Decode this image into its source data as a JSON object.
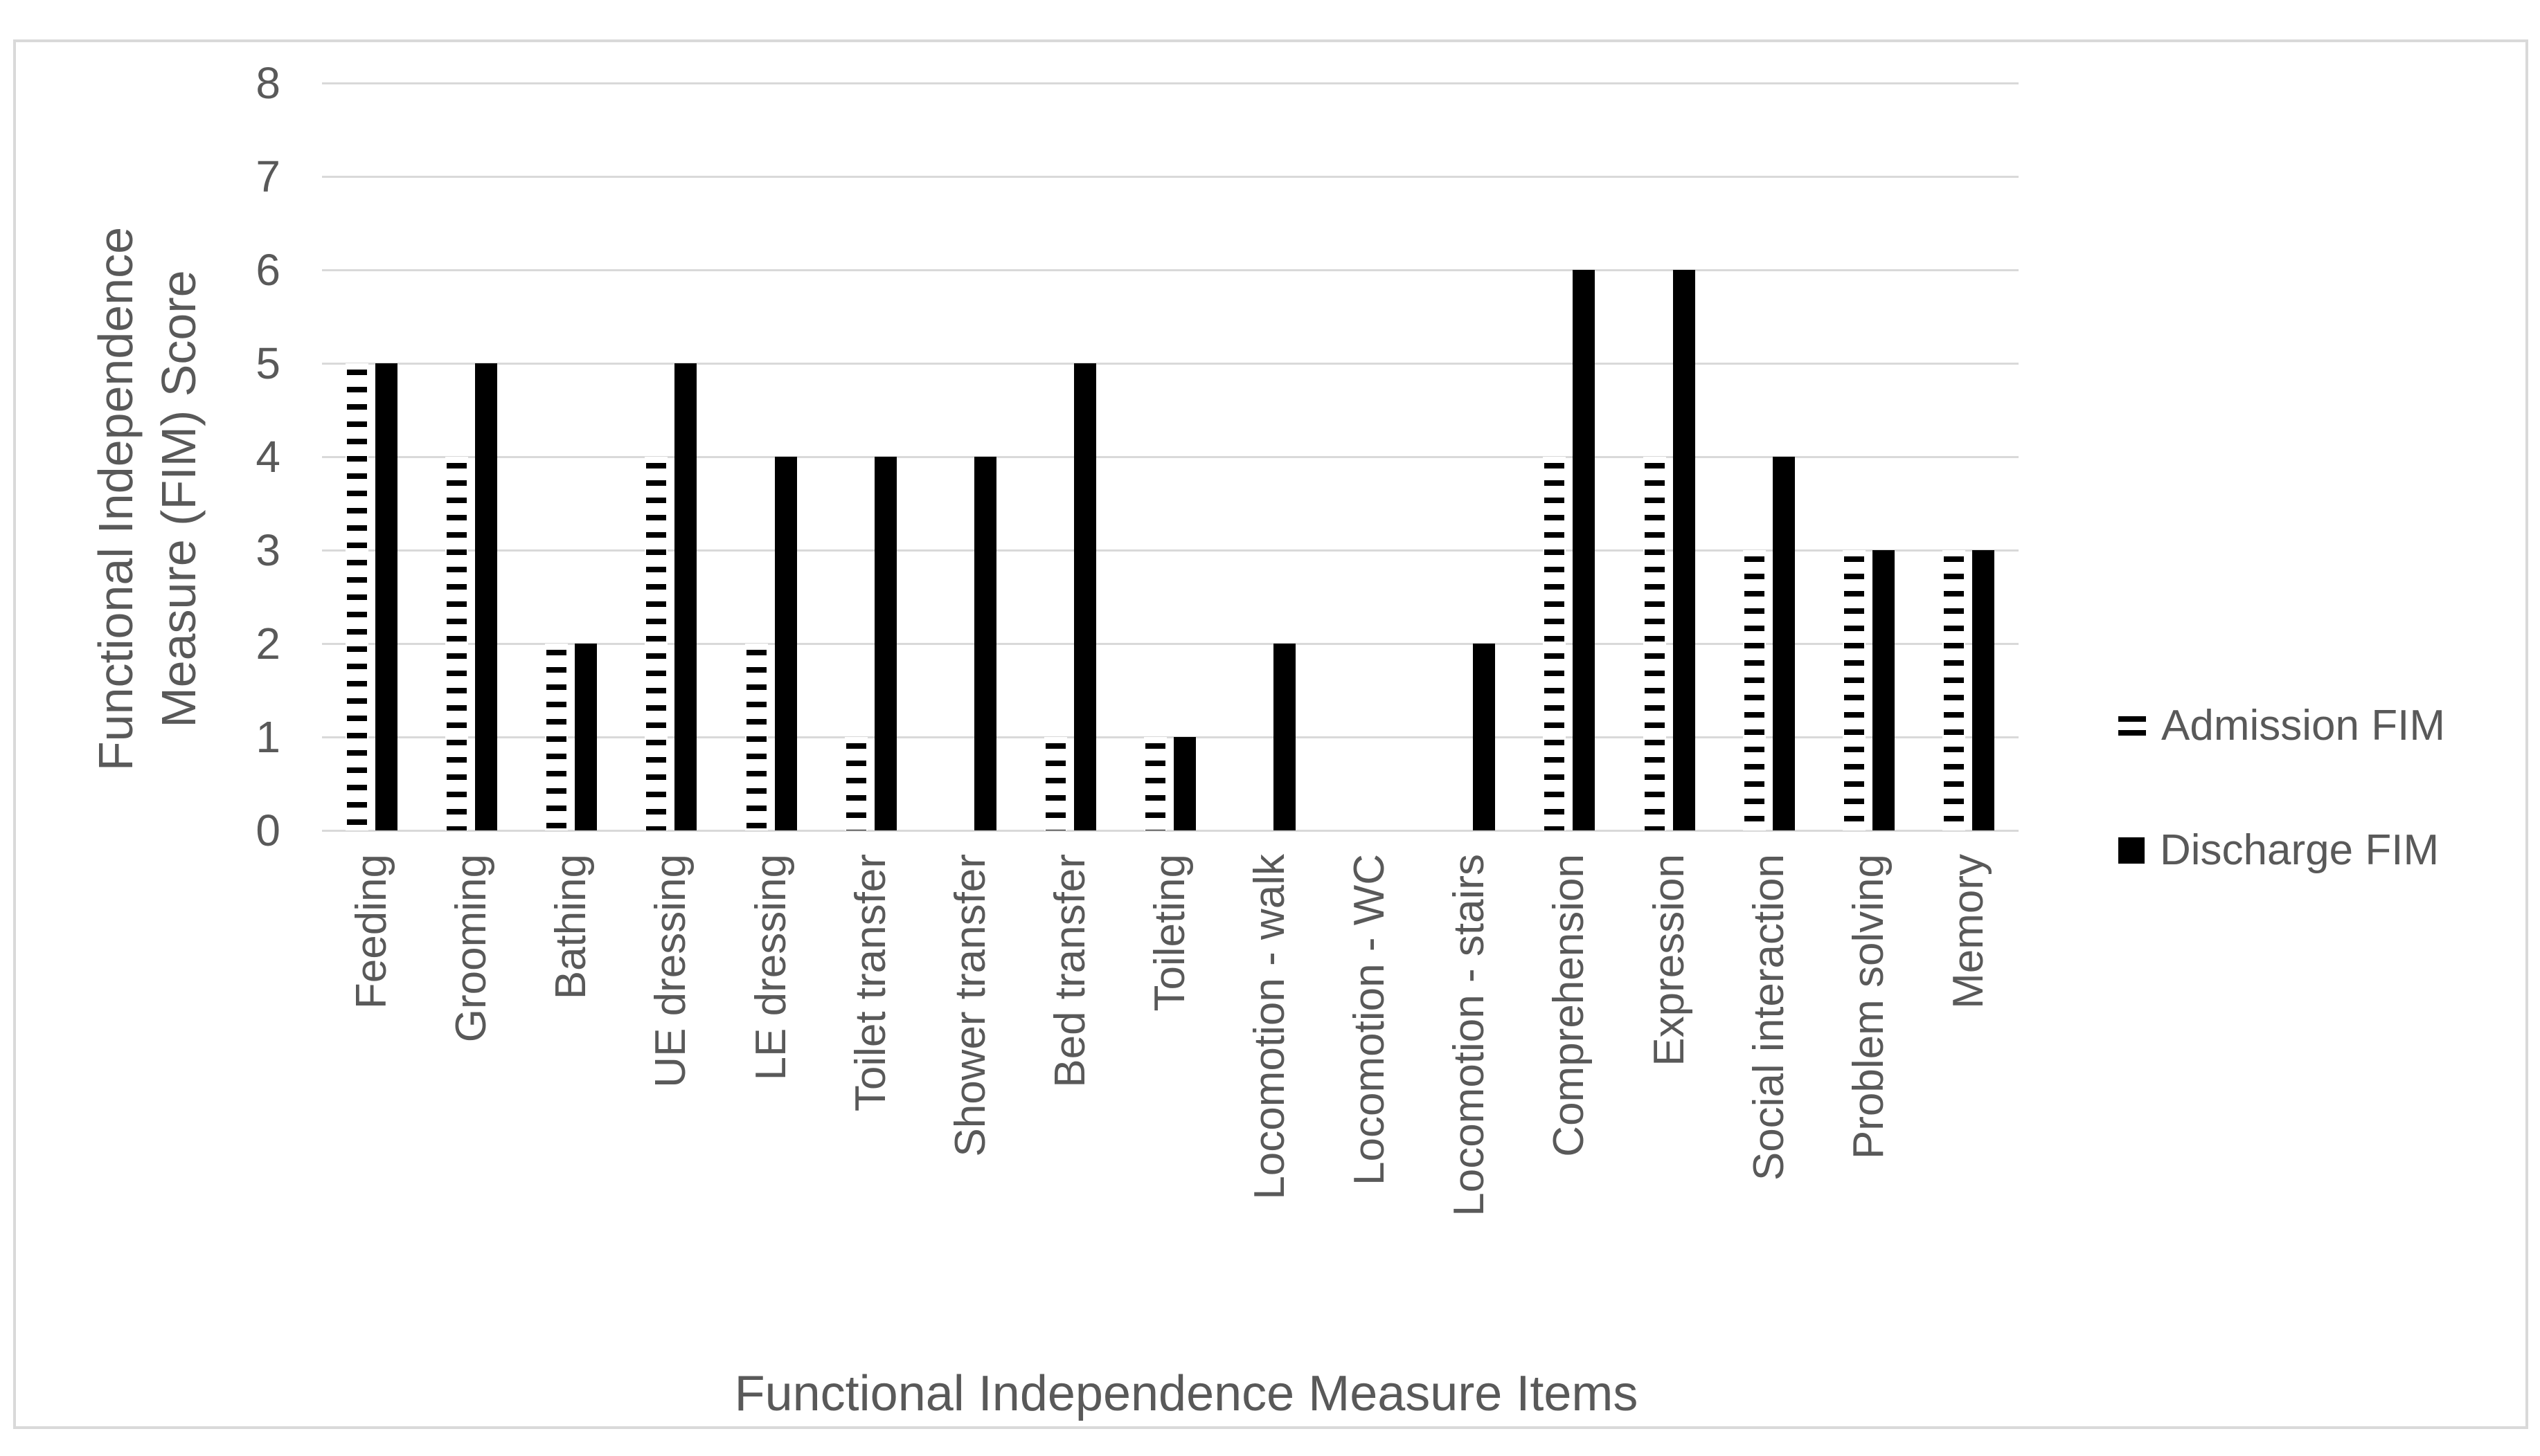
{
  "figure": {
    "background": "#ffffff",
    "border_color": "#d9d9d9"
  },
  "colors": {
    "bar_fill": "#000000",
    "gridline": "#d9d9d9",
    "text": "#595959",
    "admission_pattern": "horizontal-black-dashes-on-white"
  },
  "y_axis": {
    "title_line1": "Functional Independence",
    "title_line2": "Measure (FIM) Score",
    "tick_labels": [
      "0",
      "1",
      "2",
      "3",
      "4",
      "5",
      "6",
      "7",
      "8"
    ],
    "min": 0,
    "max": 8
  },
  "x_axis": {
    "title": "Functional Independence Measure Items"
  },
  "legend": {
    "items": [
      {
        "label": "Admission FIM",
        "swatch": "dashed-pattern-icon"
      },
      {
        "label": "Discharge FIM",
        "swatch": "solid-black-square-icon"
      }
    ]
  },
  "chart_data": {
    "type": "bar",
    "title": "",
    "xlabel": "Functional Independence Measure Items",
    "ylabel": "Functional Independence Measure (FIM) Score",
    "ylim": [
      0,
      8
    ],
    "grid": true,
    "legend_position": "right",
    "categories": [
      "Feeding",
      "Grooming",
      "Bathing",
      "UE dressing",
      "LE dressing",
      "Toilet transfer",
      "Shower transfer",
      "Bed transfer",
      "Toileting",
      "Locomotion - walk",
      "Locomotion - WC",
      "Locomotion - stairs",
      "Comprehension",
      "Expression",
      "Social interaction",
      "Problem solving",
      "Memory"
    ],
    "series": [
      {
        "name": "Admission FIM",
        "style": "white-bar-with-horizontal-black-dashes",
        "values": [
          5,
          4,
          2,
          4,
          2,
          1,
          0,
          1,
          1,
          0,
          0,
          0,
          4,
          4,
          3,
          3,
          3
        ]
      },
      {
        "name": "Discharge FIM",
        "style": "solid-black-bar",
        "values": [
          5,
          5,
          2,
          5,
          4,
          4,
          4,
          5,
          1,
          2,
          0,
          2,
          6,
          6,
          4,
          3,
          3
        ]
      }
    ]
  }
}
